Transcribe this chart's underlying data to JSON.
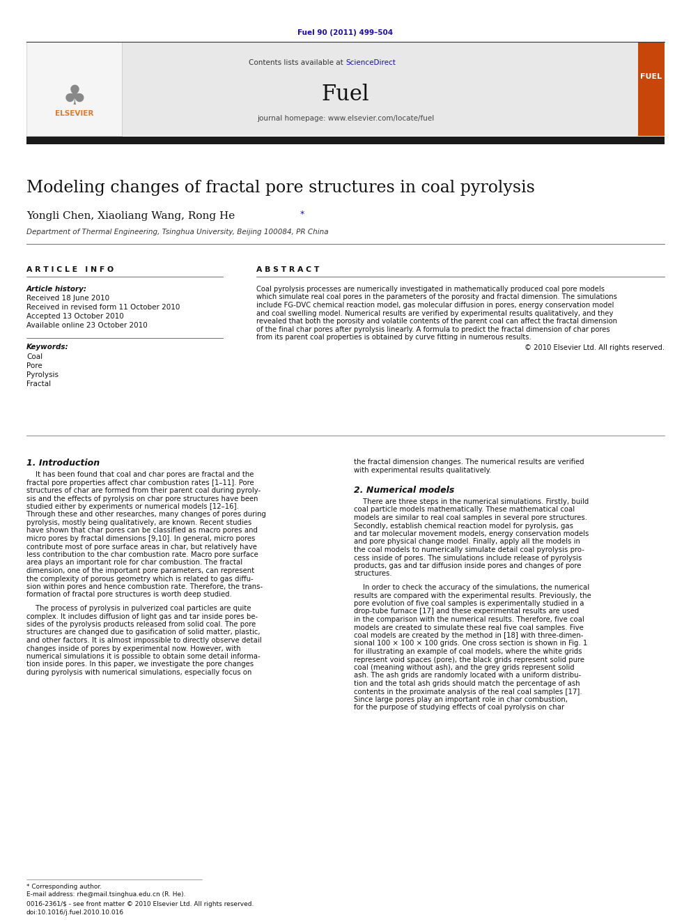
{
  "page_width": 9.92,
  "page_height": 13.23,
  "background_color": "#ffffff",
  "journal_ref": "Fuel 90 (2011) 499–504",
  "journal_ref_color": "#1a0dab",
  "header_bg": "#e8e8e8",
  "header_sciencedirect_color": "#1a0dab",
  "header_journal_name": "Fuel",
  "header_homepage": "journal homepage: www.elsevier.com/locate/fuel",
  "elsevier_color": "#e87722",
  "fuel_cover_color": "#c8460a",
  "thick_bar_color": "#1a1a1a",
  "paper_title": "Modeling changes of fractal pore structures in coal pyrolysis",
  "authors": "Yongli Chen, Xiaoliang Wang, Rong He",
  "affiliation": "Department of Thermal Engineering, Tsinghua University, Beijing 100084, PR China",
  "article_info_header": "A R T I C L E   I N F O",
  "abstract_header": "A B S T R A C T",
  "article_history_label": "Article history:",
  "received": "Received 18 June 2010",
  "revised": "Received in revised form 11 October 2010",
  "accepted": "Accepted 13 October 2010",
  "online": "Available online 23 October 2010",
  "keywords_label": "Keywords:",
  "keywords": [
    "Coal",
    "Pore",
    "Pyrolysis",
    "Fractal"
  ],
  "copyright": "© 2010 Elsevier Ltd. All rights reserved.",
  "section1_title": "1. Introduction",
  "section2_title_right_lines": [
    "the fractal dimension changes. The numerical results are verified",
    "with experimental results qualitatively."
  ],
  "section2_title": "2. Numerical models",
  "footer_text1": "* Corresponding author.",
  "footer_email": "E-mail address: rhe@mail.tsinghua.edu.cn (R. He).",
  "footer_issn": "0016-2361/$ - see front matter © 2010 Elsevier Ltd. All rights reserved.",
  "footer_doi": "doi:10.1016/j.fuel.2010.10.016"
}
